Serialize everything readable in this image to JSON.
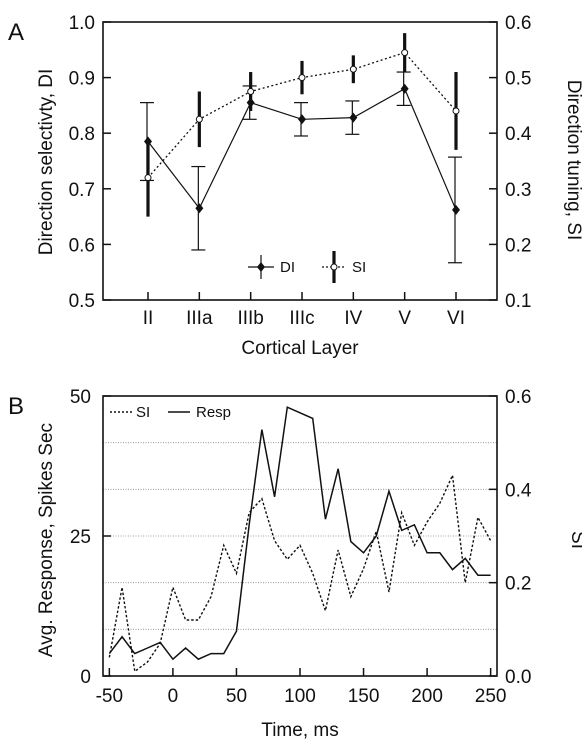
{
  "chart_data": [
    {
      "panel": "A",
      "type": "line",
      "xlabel": "Cortical Layer",
      "ylabel": "Direction selectivty, DI",
      "ylabel_right": "Direction tuning, SI",
      "categories": [
        "II",
        "IIIa",
        "IIIb",
        "IIIc",
        "IV",
        "V",
        "VI"
      ],
      "ylim": [
        0.5,
        1.0
      ],
      "yticks": [
        "0.5",
        "0.6",
        "0.7",
        "0.8",
        "0.9",
        "1.0"
      ],
      "ylim_right": [
        0.1,
        0.6
      ],
      "yticks_right": [
        "0.1",
        "0.2",
        "0.3",
        "0.4",
        "0.5",
        "0.6"
      ],
      "grid": false,
      "legend_position": "bottom-center",
      "series": [
        {
          "name": "DI",
          "axis": "left",
          "line_style": "solid",
          "marker": "filled-diamond",
          "values": [
            0.785,
            0.665,
            0.855,
            0.825,
            0.828,
            0.88,
            0.662
          ],
          "errors": [
            0.07,
            0.075,
            0.03,
            0.03,
            0.03,
            0.03,
            0.095
          ]
        },
        {
          "name": "SI",
          "axis": "right",
          "line_style": "dotted",
          "marker": "open-circle",
          "values": [
            0.32,
            0.425,
            0.475,
            0.5,
            0.515,
            0.545,
            0.44
          ],
          "errors": [
            0.07,
            0.05,
            0.035,
            0.03,
            0.025,
            0.035,
            0.07
          ]
        }
      ]
    },
    {
      "panel": "B",
      "type": "line",
      "xlabel": "Time, ms",
      "ylabel": "Avg. Response, Spikes Sec",
      "ylabel_right": "SI",
      "xlim": [
        -55,
        255
      ],
      "xticks": [
        "-50",
        "0",
        "50",
        "100",
        "150",
        "200",
        "250"
      ],
      "ylim": [
        0,
        50
      ],
      "yticks": [
        "0",
        "25",
        "50"
      ],
      "ylim_right": [
        0,
        0.6
      ],
      "yticks_right": [
        "0.0",
        "0.2",
        "0.4",
        "0.6"
      ],
      "grid": true,
      "legend_position": "top-left",
      "x": [
        -50,
        -40,
        -30,
        -20,
        -10,
        0,
        10,
        20,
        30,
        40,
        50,
        60,
        70,
        80,
        90,
        100,
        110,
        120,
        130,
        140,
        150,
        160,
        170,
        180,
        190,
        200,
        210,
        220,
        230,
        240,
        250
      ],
      "series": [
        {
          "name": "SI",
          "axis": "right",
          "line_style": "dotted",
          "values": [
            0.04,
            0.19,
            0.01,
            0.03,
            0.07,
            0.19,
            0.12,
            0.12,
            0.17,
            0.28,
            0.22,
            0.35,
            0.38,
            0.29,
            0.25,
            0.28,
            0.22,
            0.14,
            0.27,
            0.17,
            0.23,
            0.31,
            0.18,
            0.35,
            0.28,
            0.33,
            0.37,
            0.43,
            0.2,
            0.34,
            0.29
          ]
        },
        {
          "name": "Resp",
          "axis": "left",
          "line_style": "solid",
          "values": [
            4,
            7,
            4,
            5,
            6,
            3,
            5,
            3,
            4,
            4,
            8,
            27,
            44,
            32,
            48,
            47,
            46,
            28,
            37,
            24,
            22,
            25,
            33,
            26,
            27,
            22,
            22,
            19,
            21,
            18,
            18
          ]
        }
      ]
    }
  ]
}
